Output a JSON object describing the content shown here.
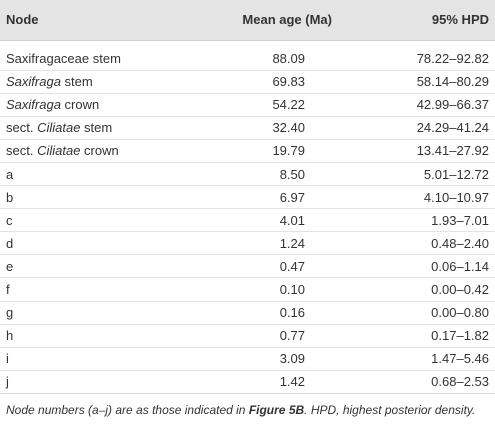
{
  "table": {
    "headers": {
      "node": "Node",
      "mean_age": "Mean age (Ma)",
      "hpd": "95% HPD"
    },
    "rows": [
      {
        "prefix": "",
        "italic": "",
        "main": "Saxifragaceae",
        "suffix": " stem",
        "mean": "88.09",
        "hpd": "78.22–92.82"
      },
      {
        "prefix": "",
        "italic": "Saxifraga",
        "main": "",
        "suffix": " stem",
        "mean": "69.83",
        "hpd": "58.14–80.29"
      },
      {
        "prefix": "",
        "italic": "Saxifraga",
        "main": "",
        "suffix": " crown",
        "mean": "54.22",
        "hpd": "42.99–66.37"
      },
      {
        "prefix": "sect. ",
        "italic": "Ciliatae",
        "main": "",
        "suffix": " stem",
        "mean": "32.40",
        "hpd": "24.29–41.24"
      },
      {
        "prefix": "sect. ",
        "italic": "Ciliatae",
        "main": "",
        "suffix": " crown",
        "mean": "19.79",
        "hpd": "13.41–27.92"
      },
      {
        "prefix": "",
        "italic": "",
        "main": "a",
        "suffix": "",
        "mean": "8.50",
        "hpd": "5.01–12.72"
      },
      {
        "prefix": "",
        "italic": "",
        "main": "b",
        "suffix": "",
        "mean": "6.97",
        "hpd": "4.10–10.97"
      },
      {
        "prefix": "",
        "italic": "",
        "main": "c",
        "suffix": "",
        "mean": "4.01",
        "hpd": "1.93–7.01"
      },
      {
        "prefix": "",
        "italic": "",
        "main": "d",
        "suffix": "",
        "mean": "1.24",
        "hpd": "0.48–2.40"
      },
      {
        "prefix": "",
        "italic": "",
        "main": "e",
        "suffix": "",
        "mean": "0.47",
        "hpd": "0.06–1.14"
      },
      {
        "prefix": "",
        "italic": "",
        "main": "f",
        "suffix": "",
        "mean": "0.10",
        "hpd": "0.00–0.42"
      },
      {
        "prefix": "",
        "italic": "",
        "main": "g",
        "suffix": "",
        "mean": "0.16",
        "hpd": "0.00–0.80"
      },
      {
        "prefix": "",
        "italic": "",
        "main": "h",
        "suffix": "",
        "mean": "0.77",
        "hpd": "0.17–1.82"
      },
      {
        "prefix": "",
        "italic": "",
        "main": "i",
        "suffix": "",
        "mean": "3.09",
        "hpd": "1.47–5.46"
      },
      {
        "prefix": "",
        "italic": "",
        "main": "j",
        "suffix": "",
        "mean": "1.42",
        "hpd": "0.68–2.53"
      }
    ]
  },
  "footnote": {
    "part1": "Node numbers (a–j) are as those indicated in ",
    "bold": "Figure 5B",
    "part2": ". HPD, highest posterior density."
  },
  "colors": {
    "header_bg": "#e4e4e4",
    "text": "#333333",
    "row_rule": "#e2e2e2"
  }
}
